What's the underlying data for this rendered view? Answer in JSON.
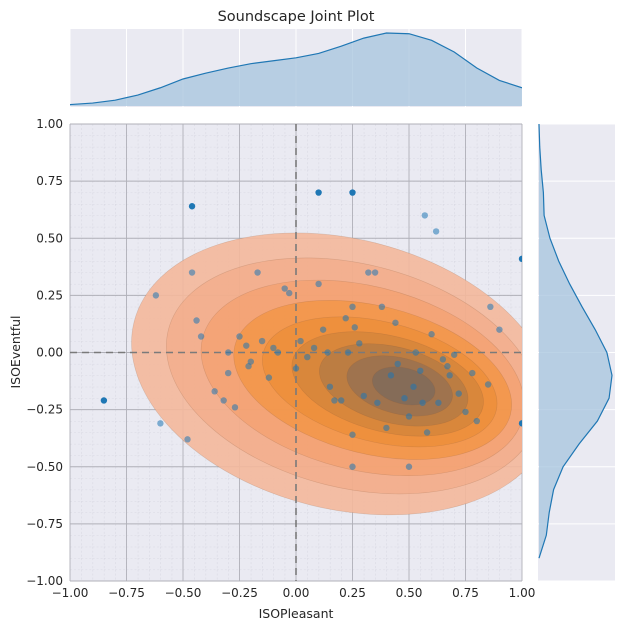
{
  "chart_data": {
    "type": "scatter",
    "title": "Soundscape Joint Plot",
    "xlabel": "ISOPleasant",
    "ylabel": "ISOEventful",
    "xlim": [
      -1.0,
      1.0
    ],
    "ylim": [
      -1.0,
      1.0
    ],
    "xticks": [
      "−1.00",
      "−0.75",
      "−0.50",
      "−0.25",
      "0.00",
      "0.25",
      "0.50",
      "0.75",
      "1.00"
    ],
    "yticks": [
      "−1.00",
      "−0.75",
      "−0.50",
      "−0.25",
      "0.00",
      "0.25",
      "0.50",
      "0.75",
      "1.00"
    ],
    "xtick_values": [
      -1,
      -0.75,
      -0.5,
      -0.25,
      0,
      0.25,
      0.5,
      0.75,
      1
    ],
    "ytick_values": [
      -1,
      -0.75,
      -0.5,
      -0.25,
      0,
      0.25,
      0.5,
      0.75,
      1
    ],
    "grid": true,
    "minor_grid": true,
    "reference_lines": {
      "x": 0,
      "y": 0
    },
    "colors": {
      "points": "#1f77b4",
      "kde_fill": "#f28c28",
      "kde_outer": "#f4b89b",
      "kde_inner": "#7a6a5c",
      "marginal_fill": "#a6c4de",
      "marginal_line": "#1f77b4",
      "panel_bg": "#eaeaf2"
    },
    "points": {
      "x": [
        -0.85,
        -0.46,
        0.1,
        0.25,
        1.0,
        1.0,
        -0.62,
        -0.6,
        -0.46,
        -0.48,
        -0.44,
        -0.42,
        -0.36,
        -0.32,
        -0.3,
        -0.27,
        -0.25,
        -0.3,
        -0.22,
        -0.21,
        -0.2,
        -0.17,
        -0.15,
        -0.12,
        -0.1,
        -0.08,
        -0.05,
        -0.03,
        0.0,
        0.02,
        0.05,
        0.08,
        0.1,
        0.12,
        0.14,
        0.15,
        0.17,
        0.2,
        0.22,
        0.23,
        0.25,
        0.26,
        0.28,
        0.3,
        0.32,
        0.35,
        0.36,
        0.38,
        0.4,
        0.42,
        0.44,
        0.45,
        0.48,
        0.5,
        0.52,
        0.53,
        0.55,
        0.56,
        0.57,
        0.58,
        0.6,
        0.62,
        0.63,
        0.65,
        0.67,
        0.68,
        0.7,
        0.72,
        0.75,
        0.78,
        0.8,
        0.85,
        0.86,
        0.9,
        0.25,
        0.5,
        0.25
      ],
      "y": [
        -0.21,
        0.64,
        0.7,
        0.7,
        0.41,
        -0.31,
        0.25,
        -0.31,
        0.35,
        -0.38,
        0.14,
        0.07,
        -0.17,
        -0.21,
        -0.09,
        -0.24,
        0.07,
        0.0,
        0.03,
        -0.06,
        -0.04,
        0.35,
        0.05,
        -0.11,
        0.02,
        0.0,
        0.28,
        0.26,
        -0.07,
        0.05,
        -0.02,
        0.02,
        0.3,
        0.1,
        0.0,
        -0.15,
        -0.21,
        -0.21,
        0.15,
        0.0,
        0.2,
        0.11,
        0.04,
        -0.19,
        0.35,
        0.35,
        -0.22,
        0.2,
        -0.33,
        -0.1,
        0.13,
        -0.05,
        -0.2,
        -0.28,
        -0.15,
        0.0,
        -0.08,
        -0.22,
        0.6,
        -0.35,
        0.08,
        0.53,
        -0.22,
        -0.03,
        -0.06,
        -0.1,
        -0.01,
        -0.18,
        -0.26,
        -0.09,
        -0.3,
        -0.14,
        0.2,
        0.1,
        -0.36,
        -0.5,
        -0.5
      ]
    },
    "kde_centers": [
      {
        "x": 0.45,
        "y": -0.12
      }
    ],
    "marginal_x_density": {
      "x": [
        -1.0,
        -0.9,
        -0.8,
        -0.7,
        -0.6,
        -0.5,
        -0.4,
        -0.3,
        -0.2,
        -0.1,
        0.0,
        0.1,
        0.2,
        0.3,
        0.4,
        0.5,
        0.6,
        0.7,
        0.8,
        0.9,
        1.0
      ],
      "density": [
        0.02,
        0.04,
        0.08,
        0.15,
        0.25,
        0.37,
        0.45,
        0.52,
        0.58,
        0.62,
        0.66,
        0.72,
        0.82,
        0.93,
        1.0,
        0.99,
        0.9,
        0.74,
        0.52,
        0.35,
        0.25
      ]
    },
    "marginal_y_density": {
      "y": [
        -0.9,
        -0.8,
        -0.7,
        -0.6,
        -0.5,
        -0.4,
        -0.3,
        -0.2,
        -0.1,
        0.0,
        0.1,
        0.2,
        0.3,
        0.4,
        0.5,
        0.6,
        0.7,
        0.8,
        0.9,
        1.0
      ],
      "density": [
        0.0,
        0.1,
        0.14,
        0.2,
        0.33,
        0.55,
        0.8,
        0.96,
        1.0,
        0.93,
        0.77,
        0.59,
        0.42,
        0.27,
        0.15,
        0.07,
        0.06,
        0.03,
        0.01,
        0.0
      ]
    }
  }
}
